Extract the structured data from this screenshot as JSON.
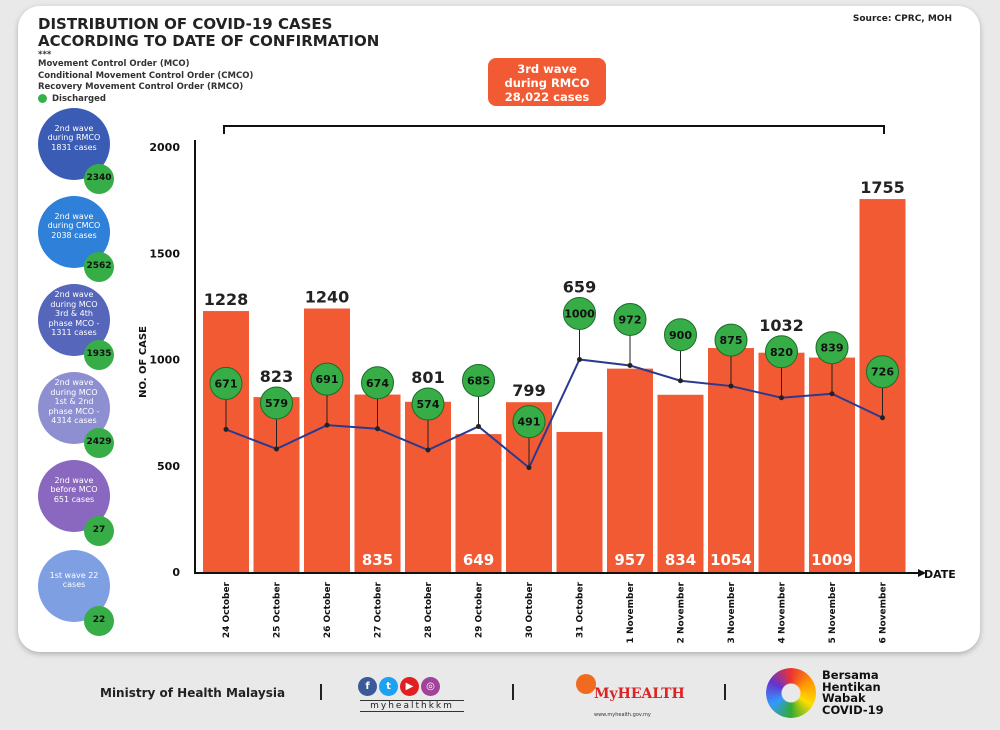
{
  "header": {
    "title_line1": "DISTRIBUTION OF COVID-19 CASES",
    "title_line2": "ACCORDING TO DATE OF CONFIRMATION",
    "marker": "***",
    "legend": [
      "Movement Control Order (MCO)",
      "Conditional Movement Control Order (CMCO)",
      "Recovery Movement Control Order (RMCO)"
    ],
    "discharged_label": "Discharged",
    "source": "Source: CPRC, MOH"
  },
  "wave_box": {
    "line1": "3rd wave",
    "line2": "during RMCO",
    "line3": "28,022 cases"
  },
  "waves": [
    {
      "label": "2nd wave during RMCO 1831 cases",
      "discharged": "2340",
      "color": "#3b5cb5"
    },
    {
      "label": "2nd wave during CMCO 2038 cases",
      "discharged": "2562",
      "color": "#2f80d8"
    },
    {
      "label": "2nd wave during MCO 3rd & 4th phase MCO - 1311 cases",
      "discharged": "1935",
      "color": "#5566bb"
    },
    {
      "label": "2nd wave during MCO 1st & 2nd phase MCO - 4314 cases",
      "discharged": "2429",
      "color": "#8d8fd1"
    },
    {
      "label": "2nd wave before MCO 651 cases",
      "discharged": "27",
      "color": "#8b68bf"
    },
    {
      "label": "1st wave 22 cases",
      "discharged": "22",
      "color": "#7e9fe2"
    }
  ],
  "chart_data": {
    "type": "bar",
    "title": "",
    "xlabel": "DATE",
    "ylabel": "NO. OF CASE",
    "ylim": [
      0,
      2000
    ],
    "yticks": [
      0,
      500,
      1000,
      1500,
      2000
    ],
    "categories": [
      "24 October",
      "25 October",
      "26 October",
      "27 October",
      "28 October",
      "29 October",
      "30 October",
      "31 October",
      "1 November",
      "2 November",
      "3 November",
      "4 November",
      "5 November",
      "6 November"
    ],
    "series": [
      {
        "type": "bar",
        "color": "#f25a33",
        "values": [
          1228,
          823,
          1240,
          835,
          801,
          649,
          799,
          659,
          957,
          834,
          1054,
          1032,
          1009,
          1755
        ]
      },
      {
        "type": "line",
        "name": "Discharged",
        "color": "#2b3a8f",
        "marker_color": "#36ad47",
        "values": [
          671,
          579,
          691,
          674,
          574,
          685,
          491,
          1000,
          972,
          900,
          875,
          820,
          839,
          726
        ]
      }
    ],
    "grid": false
  },
  "footer": {
    "ministry": "Ministry of Health Malaysia",
    "social_handle": "myhealthkkm",
    "myhealth_logo": "MyHEALTH",
    "myhealth_url": "www.myhealth.gov.my",
    "campaign": [
      "Bersama",
      "Hentikan",
      "Wabak",
      "COVID-19"
    ]
  }
}
